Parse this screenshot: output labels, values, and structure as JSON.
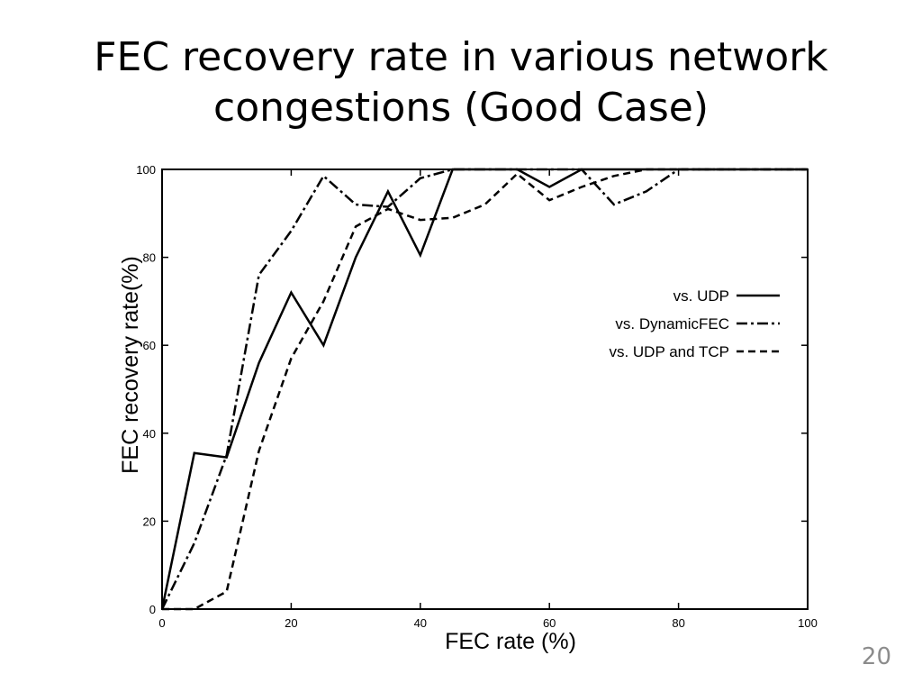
{
  "slide": {
    "title_line1": "FEC recovery rate in various network",
    "title_line2": "congestions (Good Case)",
    "page_number": "20"
  },
  "chart_data": {
    "type": "line",
    "xlabel": "FEC rate (%)",
    "ylabel": "FEC recovery rate(%)",
    "xlim": [
      0,
      100
    ],
    "ylim": [
      0,
      100
    ],
    "xticks": [
      0,
      20,
      40,
      60,
      80,
      100
    ],
    "yticks": [
      0,
      20,
      40,
      60,
      80,
      100
    ],
    "grid": false,
    "legend_position": "right",
    "series": [
      {
        "name": "vs. UDP",
        "style": "solid",
        "color": "#000000",
        "points": [
          [
            0,
            0
          ],
          [
            5,
            35.5
          ],
          [
            10,
            34.5
          ],
          [
            15,
            56
          ],
          [
            20,
            72
          ],
          [
            25,
            60
          ],
          [
            30,
            80
          ],
          [
            35,
            95
          ],
          [
            40,
            80.5
          ],
          [
            45,
            100
          ],
          [
            50,
            100
          ],
          [
            55,
            100
          ],
          [
            60,
            96
          ],
          [
            65,
            100
          ],
          [
            70,
            100
          ],
          [
            75,
            100
          ],
          [
            80,
            100
          ],
          [
            85,
            100
          ],
          [
            90,
            100
          ],
          [
            95,
            100
          ],
          [
            100,
            100
          ]
        ]
      },
      {
        "name": "vs. DynamicFEC",
        "style": "dashdot",
        "color": "#000000",
        "points": [
          [
            0,
            0
          ],
          [
            5,
            15
          ],
          [
            10,
            35
          ],
          [
            15,
            76
          ],
          [
            20,
            86
          ],
          [
            25,
            98.5
          ],
          [
            30,
            92
          ],
          [
            35,
            91.5
          ],
          [
            40,
            98
          ],
          [
            45,
            100
          ],
          [
            50,
            100
          ],
          [
            55,
            100
          ],
          [
            60,
            100
          ],
          [
            65,
            100
          ],
          [
            70,
            92
          ],
          [
            75,
            95
          ],
          [
            80,
            100
          ],
          [
            85,
            100
          ],
          [
            90,
            100
          ],
          [
            95,
            100
          ],
          [
            100,
            100
          ]
        ]
      },
      {
        "name": "vs. UDP and TCP",
        "style": "dashed",
        "color": "#000000",
        "points": [
          [
            0,
            0
          ],
          [
            5,
            0
          ],
          [
            10,
            4
          ],
          [
            15,
            36
          ],
          [
            20,
            57
          ],
          [
            25,
            70
          ],
          [
            30,
            87
          ],
          [
            35,
            91
          ],
          [
            40,
            88.5
          ],
          [
            45,
            89
          ],
          [
            50,
            92
          ],
          [
            55,
            99
          ],
          [
            60,
            93
          ],
          [
            65,
            96
          ],
          [
            70,
            98.5
          ],
          [
            75,
            100
          ],
          [
            80,
            100
          ],
          [
            85,
            100
          ],
          [
            90,
            100
          ],
          [
            95,
            100
          ],
          [
            100,
            100
          ]
        ]
      }
    ]
  }
}
